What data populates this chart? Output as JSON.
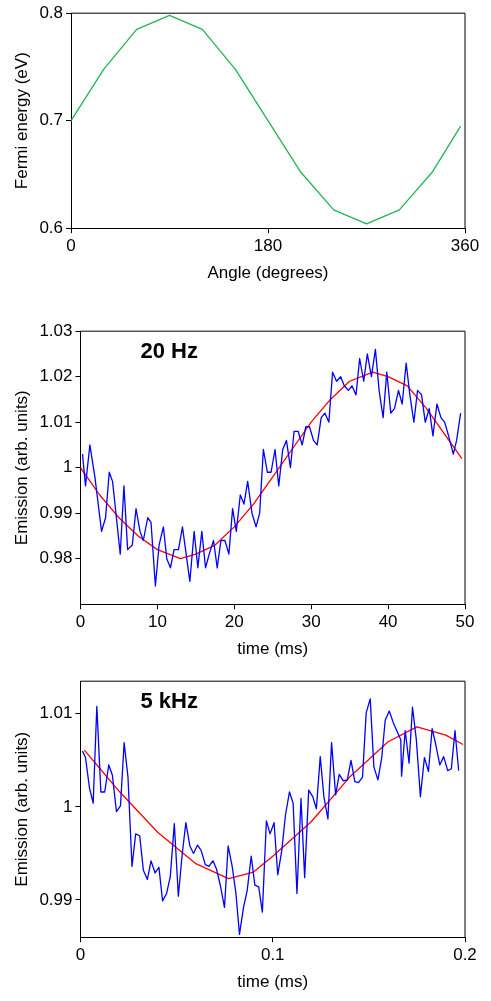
{
  "chart_data": [
    {
      "type": "line",
      "xlabel": "Angle (degrees)",
      "ylabel": "Fermi energy (eV)",
      "xlim": [
        0,
        360
      ],
      "xticks": [
        0,
        180,
        360
      ],
      "ylim": [
        0.6,
        0.8
      ],
      "yticks": [
        0.6,
        0.7,
        0.8
      ],
      "grid": false,
      "legend": false,
      "marker": "none",
      "line_style": "solid",
      "series": [
        {
          "color": "#22b454",
          "x": [
            0,
            30,
            60,
            90,
            120,
            150,
            180,
            210,
            240,
            270,
            300,
            330,
            356
          ],
          "values": [
            0.7,
            0.748,
            0.785,
            0.798,
            0.785,
            0.748,
            0.7,
            0.652,
            0.617,
            0.604,
            0.617,
            0.652,
            0.695
          ]
        }
      ]
    },
    {
      "type": "line",
      "xlabel": "time (ms)",
      "ylabel": "Emission (arb. units)",
      "annotations": [
        "20 Hz"
      ],
      "xlim": [
        0,
        50
      ],
      "xticks": [
        0,
        10,
        20,
        30,
        40,
        50
      ],
      "ylim": [
        0.97,
        1.03
      ],
      "yticks": [
        0.98,
        0.99,
        {
          "value": 1,
          "label": "1"
        },
        1.01,
        1.02,
        1.03
      ],
      "grid": false,
      "legend": false,
      "marker": "none",
      "line_style": "solid",
      "series": [
        {
          "color": "#0000ff",
          "x": [
            0.26,
            0.65,
            1.22,
            1.87,
            2.74,
            3.26,
            3.74,
            4.17,
            5.17,
            5.65,
            6.13,
            6.74,
            7.22,
            7.74,
            8.17,
            8.74,
            9.17,
            9.74,
            10.22,
            10.78,
            11.22,
            11.7,
            12.17,
            12.74,
            13.26,
            13.74,
            14.22,
            14.78,
            15.26,
            15.78,
            16.26,
            16.74,
            17.3,
            17.78,
            18.26,
            18.78,
            19.3,
            19.78,
            20.26,
            20.78,
            21.26,
            21.74,
            22.3,
            22.83,
            23.3,
            23.78,
            24.3,
            24.78,
            25.3,
            25.78,
            26.3,
            26.78,
            27.3,
            27.78,
            28.3,
            28.83,
            29.3,
            29.78,
            30.3,
            30.78,
            31.3,
            31.78,
            32.3,
            32.78,
            33.3,
            33.83,
            34.3,
            34.83,
            35.3,
            35.83,
            36.3,
            36.83,
            37.3,
            37.83,
            38.35,
            38.83,
            39.35,
            39.83,
            40.35,
            40.83,
            41.35,
            41.83,
            42.35,
            42.83,
            43.35,
            43.83,
            44.35,
            44.83,
            45.35,
            45.83,
            46.35,
            46.87,
            47.35,
            47.87,
            48.48,
            48.91,
            49.43
          ],
          "values": [
            1.003,
            0.996,
            1.005,
            0.998,
            0.986,
            0.989,
            0.999,
            0.997,
            0.981,
            0.996,
            0.982,
            0.983,
            0.991,
            0.986,
            0.984,
            0.989,
            0.988,
            0.974,
            0.983,
            0.987,
            0.98,
            0.978,
            0.982,
            0.982,
            0.987,
            0.981,
            0.975,
            0.986,
            0.978,
            0.986,
            0.978,
            0.981,
            0.984,
            0.978,
            0.984,
            0.984,
            0.981,
            0.991,
            0.986,
            0.994,
            0.992,
            0.997,
            0.99,
            0.987,
            0.99,
            1.004,
            0.999,
            0.999,
            1.004,
            0.996,
            1.004,
            1.006,
            1.0,
            1.008,
            1.008,
            1.005,
            1.009,
            1.009,
            1.006,
            1.005,
            1.011,
            1.012,
            1.01,
            1.021,
            1.019,
            1.02,
            1.018,
            1.017,
            1.018,
            1.016,
            1.024,
            1.019,
            1.025,
            1.02,
            1.026,
            1.017,
            1.011,
            1.021,
            1.012,
            1.013,
            1.017,
            1.014,
            1.023,
            1.016,
            1.01,
            1.017,
            1.016,
            1.01,
            1.013,
            1.007,
            1.014,
            1.011,
            1.01,
            1.007,
            1.003,
            1.006,
            1.012
          ]
        },
        {
          "color": "#ff0000",
          "x": [
            0,
            2.5,
            5,
            7.5,
            10,
            13,
            15,
            17.5,
            20,
            22.5,
            25,
            27.5,
            30,
            32.5,
            35,
            38,
            40,
            42.5,
            45,
            47.5,
            49.6
          ],
          "values": [
            1.0,
            0.994,
            0.989,
            0.985,
            0.982,
            0.98,
            0.981,
            0.983,
            0.987,
            0.992,
            0.998,
            1.004,
            1.01,
            1.015,
            1.019,
            1.021,
            1.02,
            1.018,
            1.013,
            1.007,
            1.002
          ]
        }
      ]
    },
    {
      "type": "line",
      "xlabel": "time (ms)",
      "ylabel": "Emission (arb. units)",
      "annotations": [
        "5 kHz"
      ],
      "xlim": [
        0,
        0.2
      ],
      "xticks": [
        0,
        0.1,
        0.2
      ],
      "ylim": [
        0.986,
        1.0135
      ],
      "yticks": [
        0.99,
        {
          "value": 1,
          "label": "1"
        },
        1.01
      ],
      "grid": false,
      "legend": false,
      "marker": "none",
      "line_style": "solid",
      "series": [
        {
          "color": "#0000ff",
          "x": [
            0.001,
            0.0026,
            0.0047,
            0.0066,
            0.0085,
            0.0106,
            0.0126,
            0.0147,
            0.0166,
            0.0187,
            0.0208,
            0.0227,
            0.0247,
            0.0268,
            0.0287,
            0.0308,
            0.0327,
            0.0348,
            0.0367,
            0.0388,
            0.0408,
            0.0427,
            0.0448,
            0.0467,
            0.0488,
            0.0509,
            0.0528,
            0.0548,
            0.0569,
            0.0588,
            0.0609,
            0.0628,
            0.0649,
            0.0668,
            0.0689,
            0.0708,
            0.0728,
            0.0749,
            0.0768,
            0.0789,
            0.0808,
            0.0827,
            0.0848,
            0.0867,
            0.0888,
            0.0907,
            0.0927,
            0.0946,
            0.0967,
            0.0986,
            0.1007,
            0.1026,
            0.1047,
            0.1066,
            0.1087,
            0.1106,
            0.1126,
            0.1147,
            0.1166,
            0.1187,
            0.1208,
            0.1227,
            0.1247,
            0.1266,
            0.1287,
            0.1306,
            0.1327,
            0.1346,
            0.1367,
            0.1388,
            0.1407,
            0.1427,
            0.1446,
            0.1467,
            0.1486,
            0.1507,
            0.1526,
            0.1547,
            0.1567,
            0.1585,
            0.1606,
            0.1626,
            0.1647,
            0.1666,
            0.167,
            0.1689,
            0.1709,
            0.1727,
            0.1747,
            0.1768,
            0.1789,
            0.181,
            0.1829,
            0.1848,
            0.1869,
            0.1889,
            0.191,
            0.1929,
            0.1948,
            0.1967
          ],
          "values": [
            1.006,
            1.0053,
            1.002,
            1.0004,
            1.0108,
            1.0016,
            1.0016,
            1.0045,
            1.0034,
            0.9995,
            1.0001,
            1.0069,
            1.0032,
            0.9936,
            0.9971,
            0.9969,
            0.9932,
            0.9922,
            0.9942,
            0.9929,
            0.9935,
            0.9899,
            0.9907,
            0.9925,
            0.9982,
            0.9904,
            0.9947,
            0.9983,
            0.9958,
            0.995,
            0.9959,
            0.9953,
            0.9938,
            0.9936,
            0.9942,
            0.9933,
            0.9915,
            0.9892,
            0.9958,
            0.9936,
            0.9908,
            0.9863,
            0.9892,
            0.991,
            0.9947,
            0.9916,
            0.9914,
            0.9887,
            0.9985,
            0.9971,
            0.9983,
            0.9927,
            0.9953,
            0.9991,
            1.0016,
            1.0004,
            0.9907,
            1.0009,
            0.9924,
            1.0018,
            1.0011,
            0.9998,
            1.0054,
            1.0011,
            0.9987,
            1.0069,
            1.0013,
            1.0035,
            1.0028,
            1.0029,
            1.005,
            1.0027,
            1.0026,
            1.0032,
            1.0101,
            1.0116,
            1.0043,
            1.0029,
            1.0053,
            1.0093,
            1.0103,
            1.0091,
            1.0081,
            1.0072,
            1.0033,
            1.0082,
            1.0047,
            1.0107,
            1.0072,
            1.0011,
            1.0053,
            1.0038,
            1.0084,
            1.0067,
            1.0045,
            1.0054,
            1.0039,
            1.0041,
            1.0082,
            1.0039
          ]
        },
        {
          "color": "#ff0000",
          "x": [
            0.002,
            0.02,
            0.04,
            0.06,
            0.077,
            0.09,
            0.1,
            0.12,
            0.14,
            0.16,
            0.175,
            0.19,
            0.199
          ],
          "values": [
            1.0061,
            1.0017,
            0.9973,
            0.9939,
            0.9923,
            0.993,
            0.9947,
            0.9984,
            1.0032,
            1.007,
            1.0086,
            1.0077,
            1.0067
          ]
        }
      ]
    }
  ]
}
